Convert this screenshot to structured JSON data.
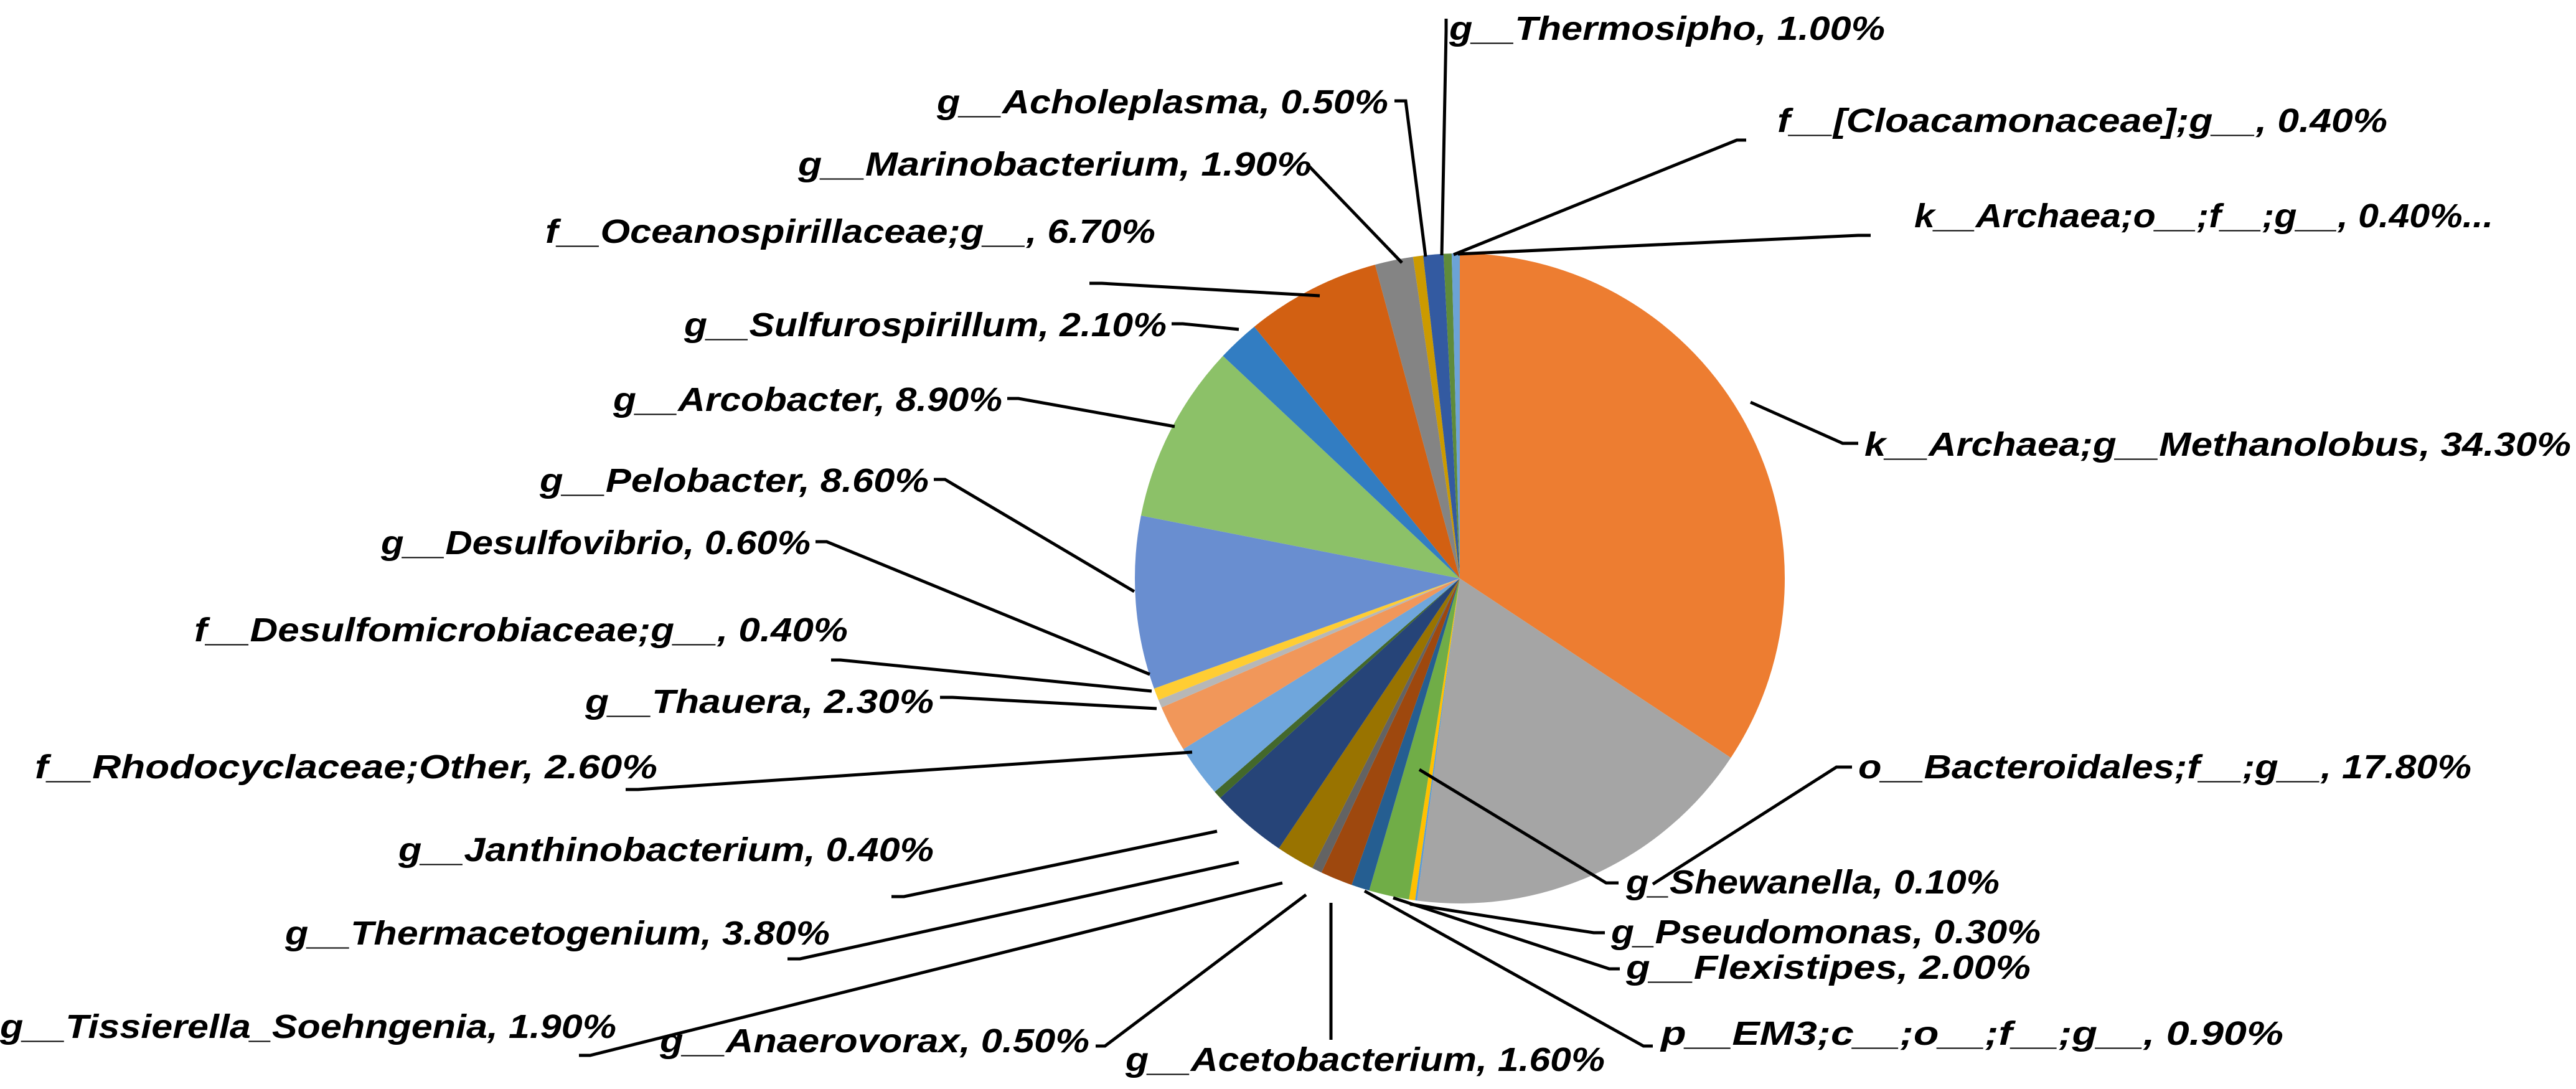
{
  "chart_data": {
    "type": "pie",
    "title": "",
    "start_angle_deg": 0,
    "direction": "clockwise",
    "label_format": "{name}, {value}",
    "slices": [
      {
        "name": "k__Archaea;g__Methanolobus",
        "value": 34.3,
        "label": "34.30%",
        "color": "#ED7D31"
      },
      {
        "name": "o__Bacteroidales;f__;g__",
        "value": 17.8,
        "label": "17.80%",
        "color": "#A5A5A5"
      },
      {
        "name": "g_Shewanella",
        "value": 0.1,
        "label": "0.10%",
        "color": "#5B9BD5"
      },
      {
        "name": "g_Pseudomonas",
        "value": 0.3,
        "label": "0.30%",
        "color": "#FFC000"
      },
      {
        "name": "g__Flexistipes",
        "value": 2.0,
        "label": "2.00%",
        "color": "#70AD47"
      },
      {
        "name": "p__EM3;c__;o__;f__;g__",
        "value": 0.9,
        "label": "0.90%",
        "color": "#255E91"
      },
      {
        "name": "g__Acetobacterium",
        "value": 1.6,
        "label": "1.60%",
        "color": "#9E480E"
      },
      {
        "name": "g__Anaerovorax",
        "value": 0.5,
        "label": "0.50%",
        "color": "#636363"
      },
      {
        "name": "g__Tissierella_Soehngenia",
        "value": 1.9,
        "label": "1.90%",
        "color": "#997300"
      },
      {
        "name": "g__Thermacetogenium",
        "value": 3.8,
        "label": "3.80%",
        "color": "#264478"
      },
      {
        "name": "g__Janthinobacterium",
        "value": 0.4,
        "label": "0.40%",
        "color": "#43682B"
      },
      {
        "name": "f__Rhodocyclaceae;Other",
        "value": 2.6,
        "label": "2.60%",
        "color": "#6FA6DC"
      },
      {
        "name": "g__Thauera",
        "value": 2.3,
        "label": "2.30%",
        "color": "#F1975A"
      },
      {
        "name": "f__Desulfomicrobiaceae;g__",
        "value": 0.4,
        "label": "0.40%",
        "color": "#B7B7B7"
      },
      {
        "name": "g__Desulfovibrio",
        "value": 0.6,
        "label": "0.60%",
        "color": "#FFCD33"
      },
      {
        "name": "g__Pelobacter",
        "value": 8.6,
        "label": "8.60%",
        "color": "#698ED0"
      },
      {
        "name": "g__Arcobacter",
        "value": 8.9,
        "label": "8.90%",
        "color": "#8CC168"
      },
      {
        "name": "g__Sulfurospirillum",
        "value": 2.1,
        "label": "2.10%",
        "color": "#327DC2"
      },
      {
        "name": "f__Oceanospirillaceae;g__",
        "value": 6.7,
        "label": "6.70%",
        "color": "#D26012"
      },
      {
        "name": "g__Marinobacterium",
        "value": 1.9,
        "label": "1.90%",
        "color": "#848484"
      },
      {
        "name": "g__Acholeplasma",
        "value": 0.5,
        "label": "0.50%",
        "color": "#CC9A00"
      },
      {
        "name": "g__Thermosipho",
        "value": 1.0,
        "label": "1.00%",
        "color": "#335AA1"
      },
      {
        "name": "f__[Cloacamonaceae];g__",
        "value": 0.4,
        "label": "0.40%",
        "color": "#5F8B3A"
      },
      {
        "name": "k__Archaea;o__;f__;g__",
        "value": 0.4,
        "label": "0.40%...",
        "color": "#6CA3D6"
      }
    ],
    "legend": "none (data labels with leader lines)"
  }
}
